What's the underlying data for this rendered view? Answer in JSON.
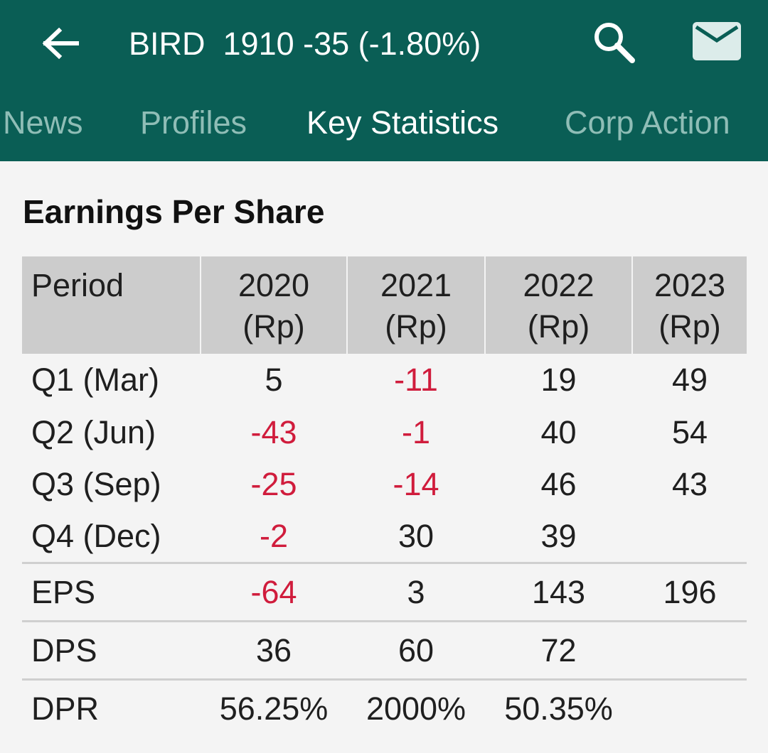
{
  "appbar": {
    "title": "BIRD  1910 -35 (-1.80%)",
    "back_icon": "arrow-left-icon",
    "search_icon": "search-icon",
    "mail_icon": "mail-icon",
    "background": "#0a5e55"
  },
  "tabs": [
    {
      "label": "News",
      "active": false
    },
    {
      "label": "Profiles",
      "active": false
    },
    {
      "label": "Key Statistics",
      "active": true
    },
    {
      "label": "Corp Action",
      "active": false
    }
  ],
  "section": {
    "title": "Earnings Per Share"
  },
  "table": {
    "headers": [
      {
        "line1": "Period",
        "line2": ""
      },
      {
        "line1": "2020",
        "line2": "(Rp)"
      },
      {
        "line1": "2021",
        "line2": "(Rp)"
      },
      {
        "line1": "2022",
        "line2": "(Rp)"
      },
      {
        "line1": "2023",
        "line2": "(Rp)"
      }
    ],
    "rows": [
      {
        "period": "Q1 (Mar)",
        "values": [
          "5",
          "-11",
          "19",
          "49"
        ]
      },
      {
        "period": "Q2 (Jun)",
        "values": [
          "-43",
          "-1",
          "40",
          "54"
        ]
      },
      {
        "period": "Q3 (Sep)",
        "values": [
          "-25",
          "-14",
          "46",
          "43"
        ]
      },
      {
        "period": "Q4 (Dec)",
        "values": [
          "-2",
          "30",
          "39",
          ""
        ]
      },
      {
        "period": "EPS",
        "values": [
          "-64",
          "3",
          "143",
          "196"
        ]
      },
      {
        "period": "DPS",
        "values": [
          "36",
          "60",
          "72",
          ""
        ]
      },
      {
        "period": "DPR",
        "values": [
          "56.25%",
          "2000%",
          "50.35%",
          ""
        ]
      }
    ],
    "negative_color": "#d01c3c"
  }
}
